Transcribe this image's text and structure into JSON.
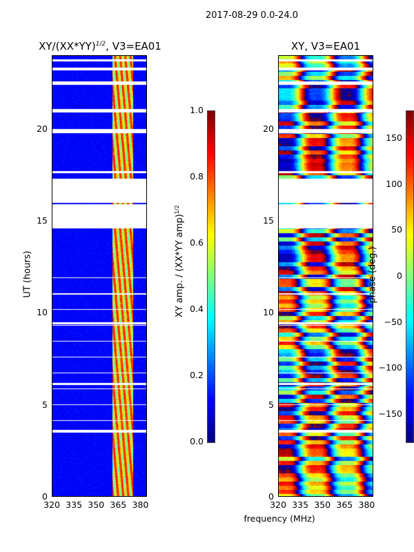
{
  "suptitle": "2017-08-29 0.0-24.0",
  "chart_data": [
    {
      "type": "heatmap",
      "title": "XY/(XX*YY)^1/2, V3=EA01",
      "title_main": "XY/(XX*YY)",
      "title_sup": "1/2",
      "title_tail": ", V3=EA01",
      "xlabel": "frequency (MHz)",
      "ylabel": "UT (hours)",
      "xlim": [
        320,
        384
      ],
      "ylim": [
        0,
        24
      ],
      "xticks": [
        "320",
        "335",
        "350",
        "365",
        "380"
      ],
      "yticks": [
        "0",
        "5",
        "10",
        "15",
        "20"
      ],
      "colorbar": {
        "label": "XY amp. / (XX*YY amp)",
        "label_sup": "1/2",
        "range": [
          0,
          1
        ],
        "ticks": [
          "0.0",
          "0.2",
          "0.4",
          "0.6",
          "0.8",
          "1.0"
        ],
        "colormap": "jet"
      },
      "background_value": 0.1,
      "active_band_mhz": [
        361,
        375
      ],
      "active_band_value": 0.55
    },
    {
      "type": "heatmap",
      "title": "XY, V3=EA01",
      "xlabel": "frequency (MHz)",
      "ylabel": "",
      "xlim": [
        320,
        384
      ],
      "ylim": [
        0,
        24
      ],
      "xticks": [
        "320",
        "335",
        "350",
        "365",
        "380"
      ],
      "yticks": [
        "0",
        "5",
        "10",
        "15",
        "20"
      ],
      "colorbar": {
        "label": "phase (deg.)",
        "range": [
          -180,
          180
        ],
        "ticks": [
          "−150",
          "−100",
          "−50",
          "0",
          "50",
          "100",
          "150"
        ],
        "colormap": "jet"
      }
    }
  ],
  "blank_ut_ranges": [
    [
      3.5,
      3.65
    ],
    [
      14.6,
      15.9
    ],
    [
      16.0,
      17.3
    ],
    [
      19.8,
      20.0
    ],
    [
      20.9,
      21.1
    ],
    [
      22.4,
      22.6
    ],
    [
      23.2,
      23.35
    ],
    [
      23.7,
      23.8
    ],
    [
      17.6,
      17.7
    ],
    [
      11.0,
      11.05
    ],
    [
      9.4,
      9.5
    ],
    [
      6.1,
      6.2
    ]
  ]
}
